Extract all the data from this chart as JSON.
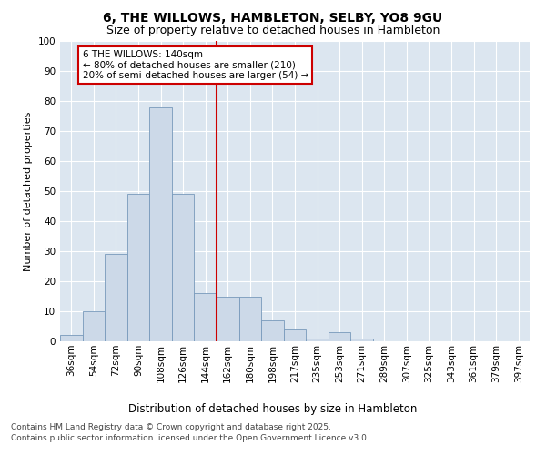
{
  "title": "6, THE WILLOWS, HAMBLETON, SELBY, YO8 9GU",
  "subtitle": "Size of property relative to detached houses in Hambleton",
  "xlabel": "Distribution of detached houses by size in Hambleton",
  "ylabel": "Number of detached properties",
  "categories": [
    "36sqm",
    "54sqm",
    "72sqm",
    "90sqm",
    "108sqm",
    "126sqm",
    "144sqm",
    "162sqm",
    "180sqm",
    "198sqm",
    "217sqm",
    "235sqm",
    "253sqm",
    "271sqm",
    "289sqm",
    "307sqm",
    "325sqm",
    "343sqm",
    "361sqm",
    "379sqm",
    "397sqm"
  ],
  "values": [
    2,
    10,
    29,
    49,
    78,
    49,
    16,
    15,
    15,
    7,
    4,
    1,
    3,
    1,
    0,
    0,
    0,
    0,
    0,
    0,
    0
  ],
  "bar_color": "#ccd9e8",
  "bar_edge_color": "#7799bb",
  "vline_x_pos": 6.5,
  "vline_color": "#cc0000",
  "annotation_text": "6 THE WILLOWS: 140sqm\n← 80% of detached houses are smaller (210)\n20% of semi-detached houses are larger (54) →",
  "annotation_box_facecolor": "#ffffff",
  "annotation_box_edgecolor": "#cc0000",
  "ylim": [
    0,
    100
  ],
  "bg_color": "#dce6f0",
  "grid_color": "#ffffff",
  "footer_text": "Contains HM Land Registry data © Crown copyright and database right 2025.\nContains public sector information licensed under the Open Government Licence v3.0.",
  "title_fontsize": 10,
  "subtitle_fontsize": 9,
  "xlabel_fontsize": 8.5,
  "ylabel_fontsize": 8,
  "tick_fontsize": 7.5,
  "annotation_fontsize": 7.5,
  "footer_fontsize": 6.5
}
